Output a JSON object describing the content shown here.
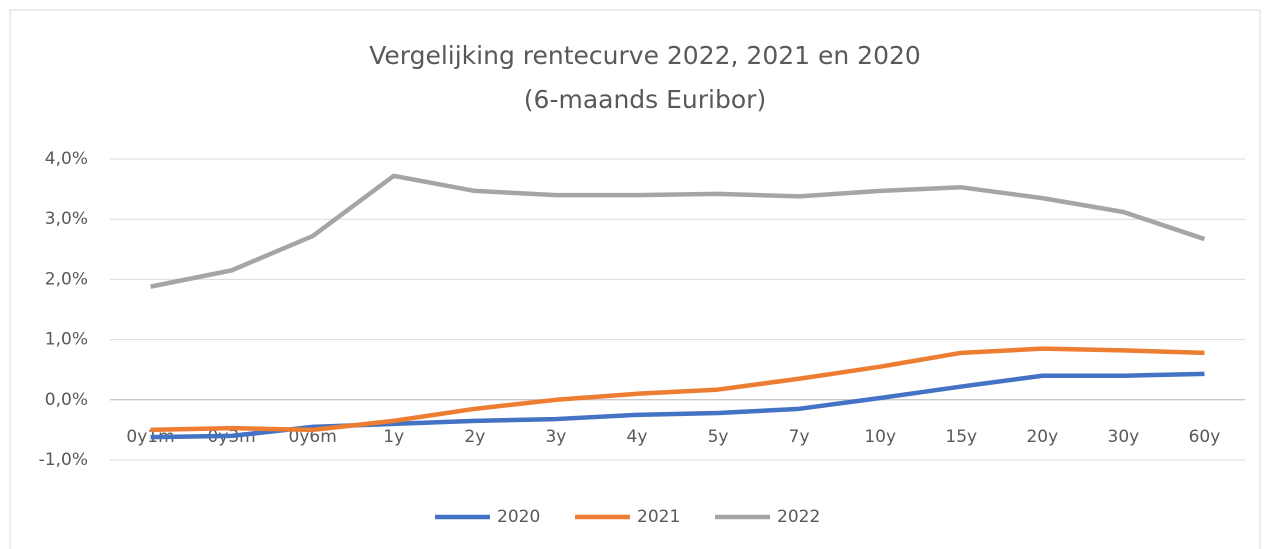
{
  "chart_data": {
    "type": "line",
    "title": "Vergelijking rentecurve 2022, 2021 en 2020",
    "subtitle": "(6-maands Euribor)",
    "categories": [
      "0y1m",
      "0y3m",
      "0y6m",
      "1y",
      "2y",
      "3y",
      "4y",
      "5y",
      "7y",
      "10y",
      "15y",
      "20y",
      "30y",
      "60y"
    ],
    "series": [
      {
        "name": "2020",
        "color": "#4472c4",
        "values": [
          -0.62,
          -0.6,
          -0.45,
          -0.4,
          -0.35,
          -0.32,
          -0.25,
          -0.22,
          -0.15,
          0.03,
          0.22,
          0.4,
          0.4,
          0.43
        ]
      },
      {
        "name": "2021",
        "color": "#ed7d31",
        "values": [
          -0.5,
          -0.47,
          -0.5,
          -0.35,
          -0.15,
          0.0,
          0.1,
          0.17,
          0.35,
          0.55,
          0.78,
          0.85,
          0.82,
          0.78
        ]
      },
      {
        "name": "2022",
        "color": "#a5a5a5",
        "values": [
          1.88,
          2.15,
          2.72,
          3.72,
          3.47,
          3.4,
          3.4,
          3.42,
          3.38,
          3.47,
          3.53,
          3.35,
          3.12,
          2.67
        ]
      }
    ],
    "ylim": [
      -1,
      4
    ],
    "yticks": [
      {
        "value": -1,
        "label": "-1,0%"
      },
      {
        "value": 0,
        "label": "0,0%"
      },
      {
        "value": 1,
        "label": "1,0%"
      },
      {
        "value": 2,
        "label": "2,0%"
      },
      {
        "value": 3,
        "label": "3,0%"
      },
      {
        "value": 4,
        "label": "4,0%"
      }
    ],
    "grid": true,
    "legend": "bottom"
  }
}
